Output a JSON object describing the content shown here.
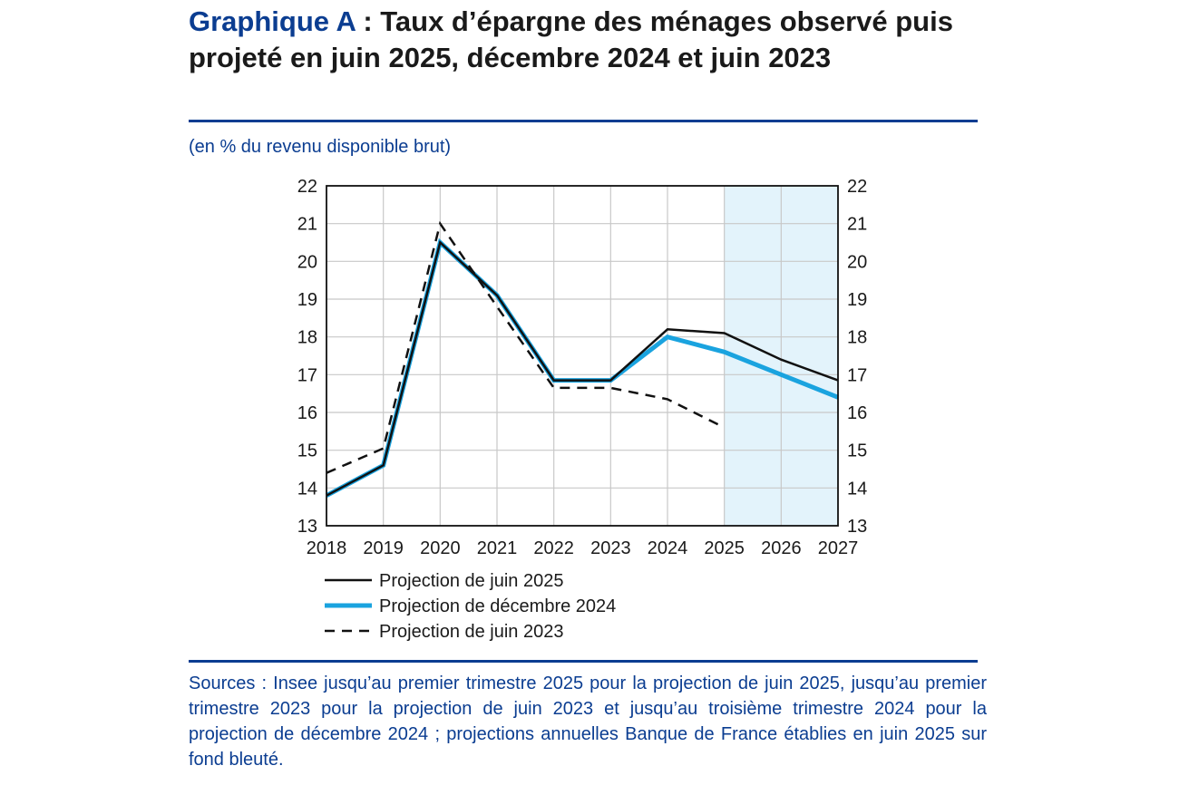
{
  "header": {
    "title_lead": "Graphique A",
    "title_rest": " : Taux d’épargne des ménages observé puis projeté en juin 2025, décembre 2024 et juin 2023",
    "unit_label": "(en % du revenu disponible brut)"
  },
  "footer": {
    "source_text": "Sources : Insee jusqu’au premier trimestre 2025 pour la projection de juin 2025, jusqu’au premier trimestre 2023 pour la projection de juin 2023 et jusqu’au troisième trimestre 2024 pour la projection de décembre 2024 ; projections annuelles Banque de France établies en juin 2025 sur fond bleuté."
  },
  "chart_data": {
    "type": "line",
    "x": [
      2018,
      2019,
      2020,
      2021,
      2022,
      2023,
      2024,
      2025,
      2026,
      2027
    ],
    "ylim": [
      13,
      22
    ],
    "yticks": [
      13,
      14,
      15,
      16,
      17,
      18,
      19,
      20,
      21,
      22
    ],
    "xticks": [
      2018,
      2019,
      2020,
      2021,
      2022,
      2023,
      2024,
      2025,
      2026,
      2027
    ],
    "grid": true,
    "legend_position": "bottom",
    "shaded_projection_range": [
      2025,
      2027
    ],
    "colors": {
      "shade": "#e3f3fb",
      "black": "#111111",
      "blue": "#1aa3df",
      "grid": "#c8c8c8"
    },
    "series": [
      {
        "name": "Projection de décembre 2024",
        "style": "solid-blue",
        "color": "#1aa3df",
        "x": [
          2018,
          2019,
          2020,
          2021,
          2022,
          2023,
          2024,
          2025,
          2026,
          2027
        ],
        "values": [
          13.8,
          14.6,
          20.5,
          19.1,
          16.85,
          16.85,
          18.0,
          17.6,
          17.0,
          16.4
        ]
      },
      {
        "name": "Projection de juin 2025",
        "style": "solid-black",
        "color": "#111111",
        "x": [
          2018,
          2019,
          2020,
          2021,
          2022,
          2023,
          2024,
          2025,
          2026,
          2027
        ],
        "values": [
          13.8,
          14.6,
          20.5,
          19.1,
          16.85,
          16.85,
          18.2,
          18.1,
          17.4,
          16.85
        ]
      },
      {
        "name": "Projection de juin 2023",
        "style": "dashed-black",
        "color": "#111111",
        "x": [
          2018,
          2019,
          2020,
          2021,
          2022,
          2023,
          2024,
          2025
        ],
        "values": [
          14.4,
          15.05,
          21.0,
          18.8,
          16.65,
          16.65,
          16.35,
          15.6
        ]
      }
    ],
    "legend": [
      {
        "label": "Projection de juin 2025",
        "style": "solid-black"
      },
      {
        "label": "Projection de décembre 2024",
        "style": "solid-blue"
      },
      {
        "label": "Projection de juin 2023",
        "style": "dashed-black"
      }
    ]
  }
}
